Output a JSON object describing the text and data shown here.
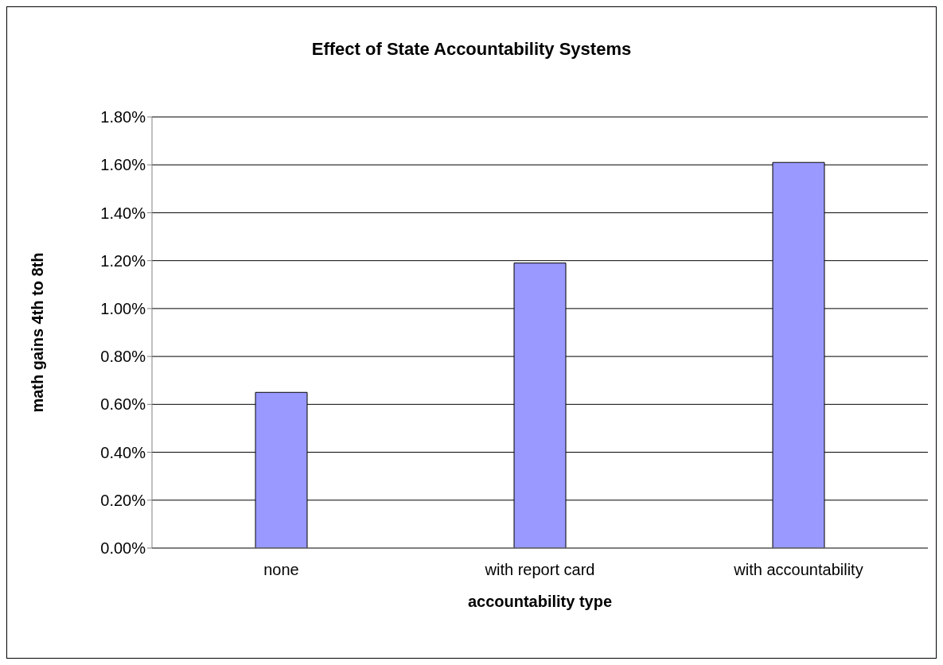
{
  "chart_data": {
    "type": "bar",
    "title": "Effect of State Accountability Systems",
    "xlabel": "accountability type",
    "ylabel": "math gains 4th to 8th",
    "categories": [
      "none",
      "with report card",
      "with accountability"
    ],
    "values": [
      0.65,
      1.19,
      1.61
    ],
    "color": "#9999ff",
    "ylim": [
      0,
      1.8
    ],
    "yticks": [
      {
        "value": 0,
        "label": "0.00%"
      },
      {
        "value": 0.2,
        "label": "0.20%"
      },
      {
        "value": 0.4,
        "label": "0.40%"
      },
      {
        "value": 0.6,
        "label": "0.60%"
      },
      {
        "value": 0.8,
        "label": "0.80%"
      },
      {
        "value": 1.0,
        "label": "1.00%"
      },
      {
        "value": 1.2,
        "label": "1.20%"
      },
      {
        "value": 1.4,
        "label": "1.40%"
      },
      {
        "value": 1.6,
        "label": "1.60%"
      },
      {
        "value": 1.8,
        "label": "1.80%"
      }
    ],
    "grid": "y"
  }
}
